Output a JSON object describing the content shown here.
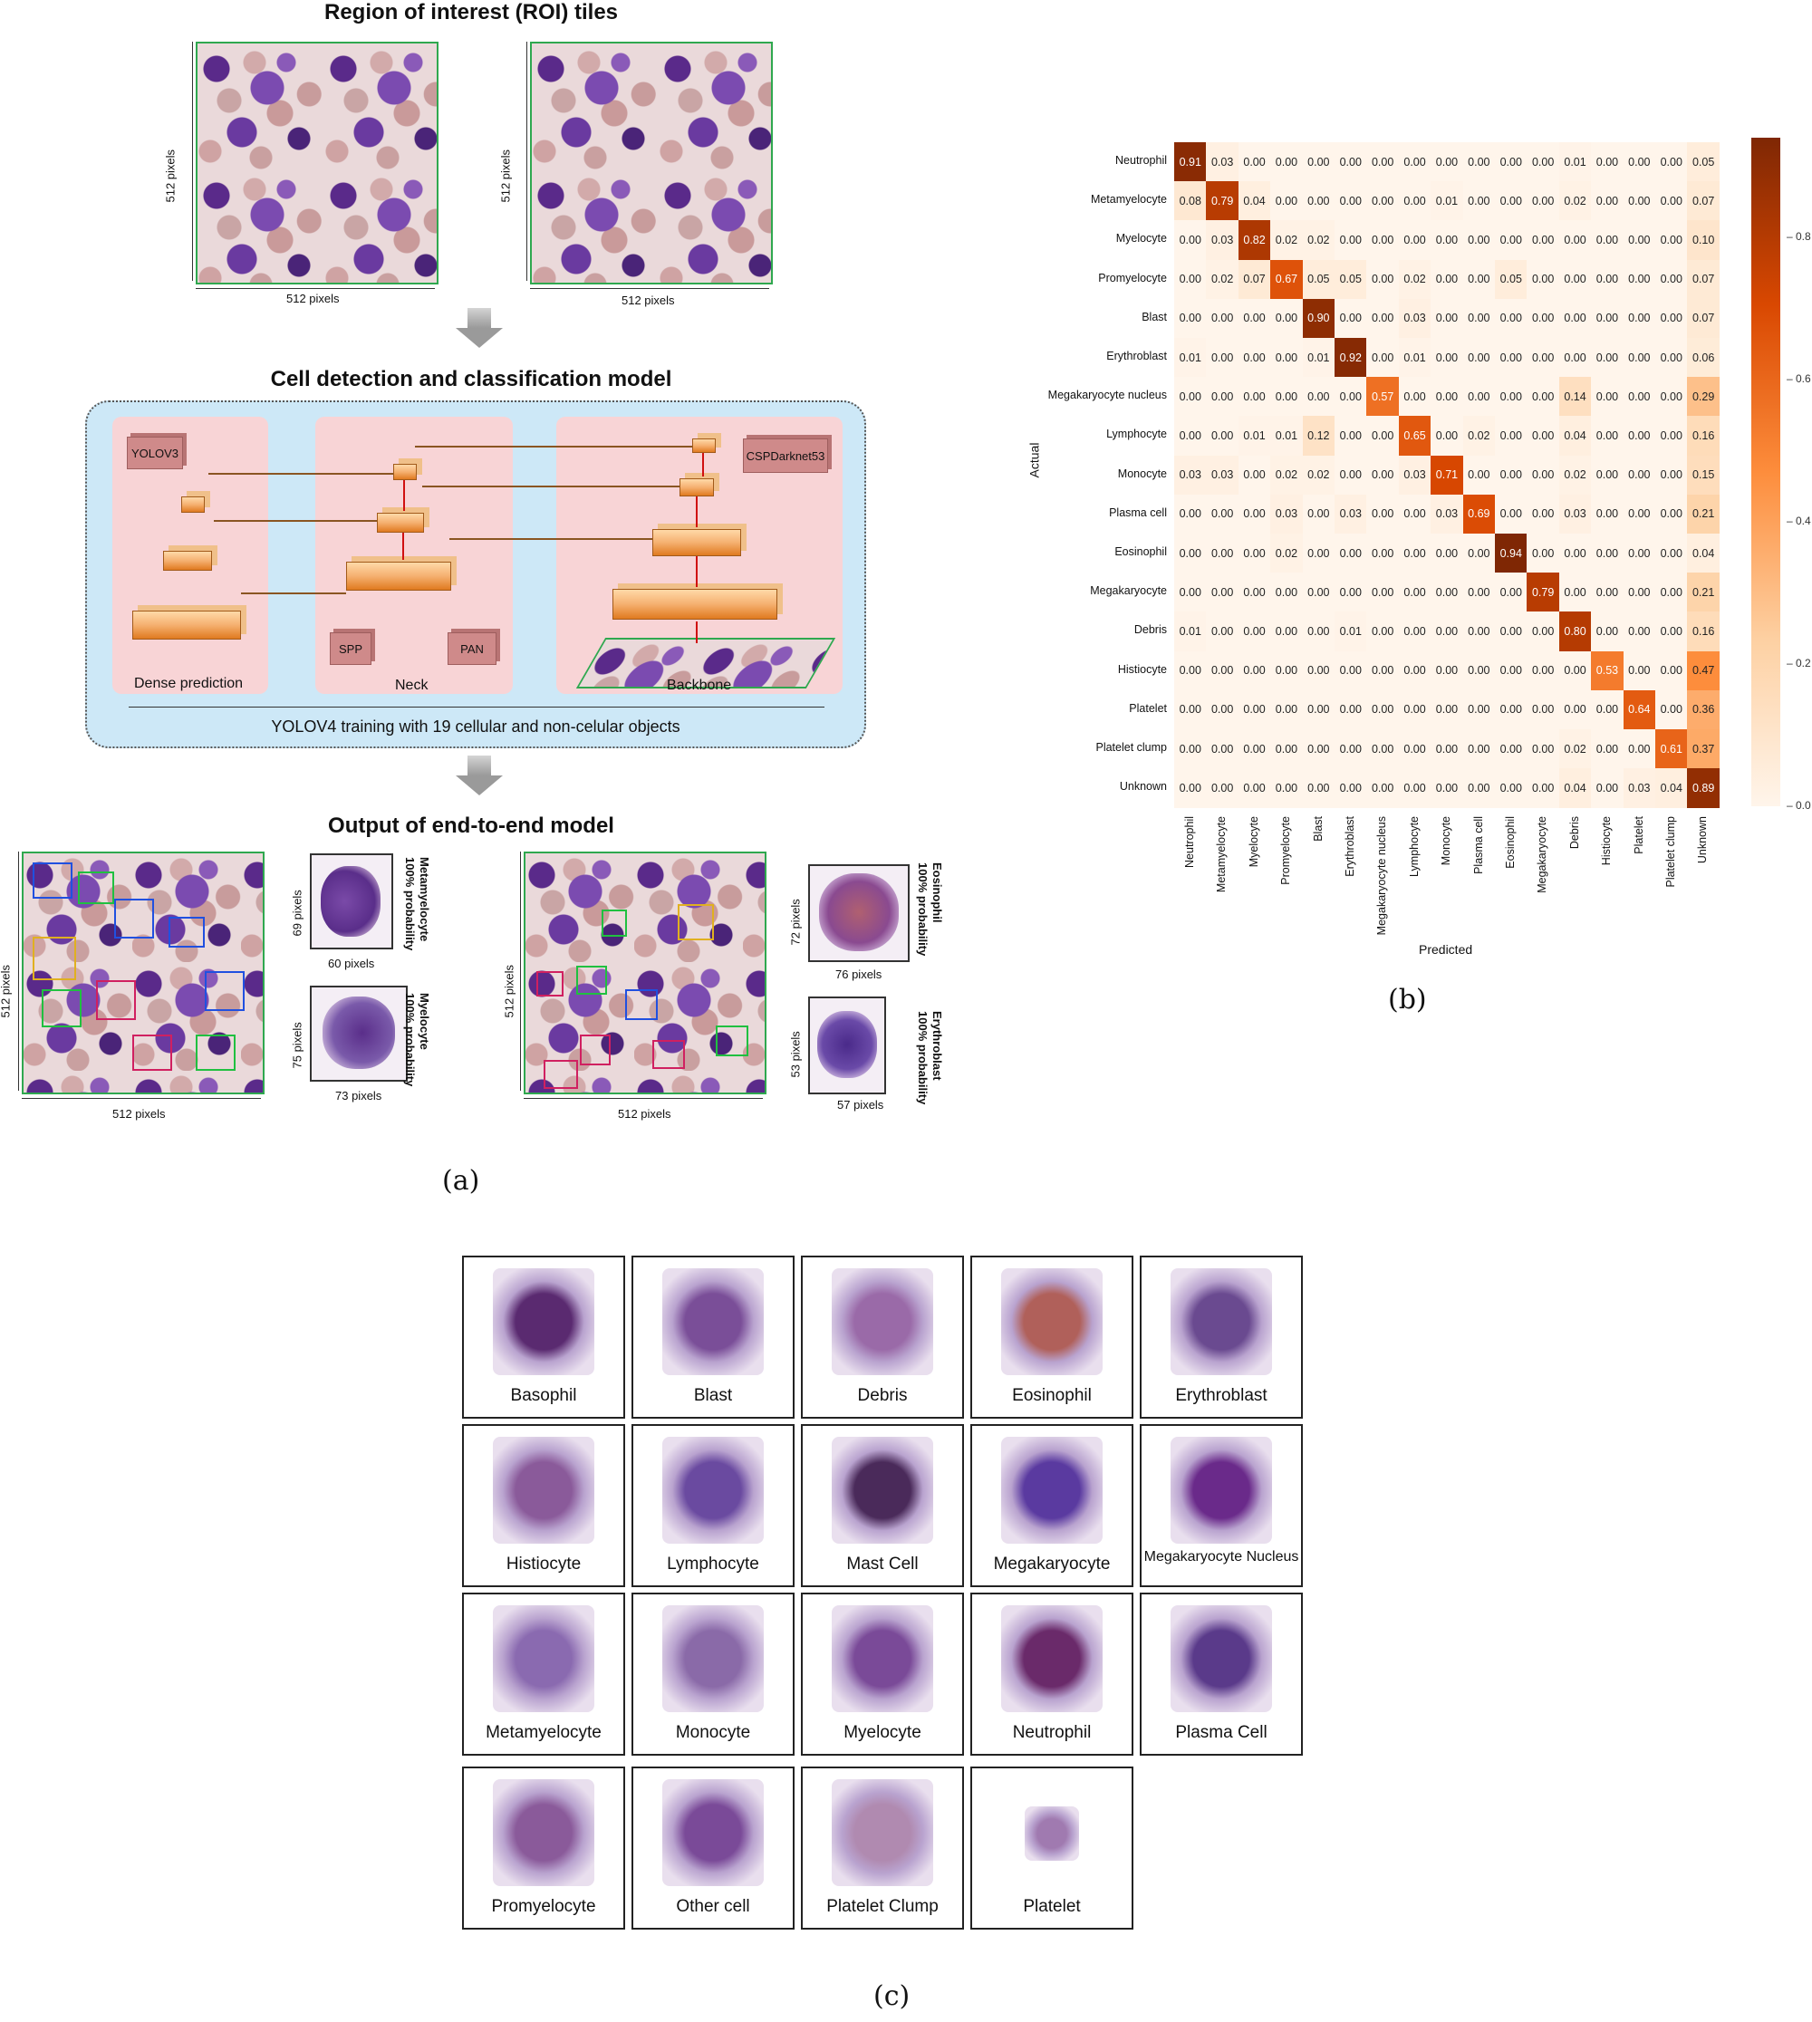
{
  "panel_a": {
    "roi_title": "Region of interest (ROI) tiles",
    "model_title": "Cell detection and classification model",
    "output_title": "Output of end-to-end model",
    "px512": "512 pixels",
    "yolov3": "YOLOV3",
    "cspdarknet": "CSPDarknet53",
    "spp": "SPP",
    "pan": "PAN",
    "dense_prediction": "Dense prediction",
    "neck": "Neck",
    "backbone": "Backbone",
    "training_text": "YOLOV4 training with 19 cellular and non-celular objects",
    "zooms": [
      {
        "h": "69 pixels",
        "w": "60 pixels",
        "label": "Metamyelocyte",
        "prob": "100% probability"
      },
      {
        "h": "75 pixels",
        "w": "73 pixels",
        "label": "Myelocyte",
        "prob": "100% probability"
      },
      {
        "h": "72 pixels",
        "w": "76 pixels",
        "label": "Eosinophil",
        "prob": "100% probability"
      },
      {
        "h": "53 pixels",
        "w": "57 pixels",
        "label": "Erythroblast",
        "prob": "100% probability"
      }
    ],
    "caption": "(a)"
  },
  "panel_b": {
    "caption": "(b)",
    "xlabel": "Predicted",
    "ylabel": "Actual"
  },
  "chart_data": {
    "type": "heatmap",
    "xlabel": "Predicted",
    "ylabel": "Actual",
    "categories": [
      "Neutrophil",
      "Metamyelocyte",
      "Myelocyte",
      "Promyelocyte",
      "Blast",
      "Erythroblast",
      "Megakaryocyte nucleus",
      "Lymphocyte",
      "Monocyte",
      "Plasma cell",
      "Eosinophil",
      "Megakaryocyte",
      "Debris",
      "Histiocyte",
      "Platelet",
      "Platelet clump",
      "Unknown"
    ],
    "values": [
      [
        0.91,
        0.03,
        0.0,
        0.0,
        0.0,
        0.0,
        0.0,
        0.0,
        0.0,
        0.0,
        0.0,
        0.0,
        0.01,
        0.0,
        0.0,
        0.0,
        0.05
      ],
      [
        0.08,
        0.79,
        0.04,
        0.0,
        0.0,
        0.0,
        0.0,
        0.0,
        0.01,
        0.0,
        0.0,
        0.0,
        0.02,
        0.0,
        0.0,
        0.0,
        0.07
      ],
      [
        0.0,
        0.03,
        0.82,
        0.02,
        0.02,
        0.0,
        0.0,
        0.0,
        0.0,
        0.0,
        0.0,
        0.0,
        0.0,
        0.0,
        0.0,
        0.0,
        0.1
      ],
      [
        0.0,
        0.02,
        0.07,
        0.67,
        0.05,
        0.05,
        0.0,
        0.02,
        0.0,
        0.0,
        0.05,
        0.0,
        0.0,
        0.0,
        0.0,
        0.0,
        0.07
      ],
      [
        0.0,
        0.0,
        0.0,
        0.0,
        0.9,
        0.0,
        0.0,
        0.03,
        0.0,
        0.0,
        0.0,
        0.0,
        0.0,
        0.0,
        0.0,
        0.0,
        0.07
      ],
      [
        0.01,
        0.0,
        0.0,
        0.0,
        0.01,
        0.92,
        0.0,
        0.01,
        0.0,
        0.0,
        0.0,
        0.0,
        0.0,
        0.0,
        0.0,
        0.0,
        0.06
      ],
      [
        0.0,
        0.0,
        0.0,
        0.0,
        0.0,
        0.0,
        0.57,
        0.0,
        0.0,
        0.0,
        0.0,
        0.0,
        0.14,
        0.0,
        0.0,
        0.0,
        0.29
      ],
      [
        0.0,
        0.0,
        0.01,
        0.01,
        0.12,
        0.0,
        0.0,
        0.65,
        0.0,
        0.02,
        0.0,
        0.0,
        0.04,
        0.0,
        0.0,
        0.0,
        0.16
      ],
      [
        0.03,
        0.03,
        0.0,
        0.02,
        0.02,
        0.0,
        0.0,
        0.03,
        0.71,
        0.0,
        0.0,
        0.0,
        0.02,
        0.0,
        0.0,
        0.0,
        0.15
      ],
      [
        0.0,
        0.0,
        0.0,
        0.03,
        0.0,
        0.03,
        0.0,
        0.0,
        0.03,
        0.69,
        0.0,
        0.0,
        0.03,
        0.0,
        0.0,
        0.0,
        0.21
      ],
      [
        0.0,
        0.0,
        0.0,
        0.02,
        0.0,
        0.0,
        0.0,
        0.0,
        0.0,
        0.0,
        0.94,
        0.0,
        0.0,
        0.0,
        0.0,
        0.0,
        0.04
      ],
      [
        0.0,
        0.0,
        0.0,
        0.0,
        0.0,
        0.0,
        0.0,
        0.0,
        0.0,
        0.0,
        0.0,
        0.79,
        0.0,
        0.0,
        0.0,
        0.0,
        0.21
      ],
      [
        0.01,
        0.0,
        0.0,
        0.0,
        0.0,
        0.01,
        0.0,
        0.0,
        0.0,
        0.0,
        0.0,
        0.0,
        0.8,
        0.0,
        0.0,
        0.0,
        0.16
      ],
      [
        0.0,
        0.0,
        0.0,
        0.0,
        0.0,
        0.0,
        0.0,
        0.0,
        0.0,
        0.0,
        0.0,
        0.0,
        0.0,
        0.53,
        0.0,
        0.0,
        0.47
      ],
      [
        0.0,
        0.0,
        0.0,
        0.0,
        0.0,
        0.0,
        0.0,
        0.0,
        0.0,
        0.0,
        0.0,
        0.0,
        0.0,
        0.0,
        0.64,
        0.0,
        0.36
      ],
      [
        0.0,
        0.0,
        0.0,
        0.0,
        0.0,
        0.0,
        0.0,
        0.0,
        0.0,
        0.0,
        0.0,
        0.0,
        0.02,
        0.0,
        0.0,
        0.61,
        0.37
      ],
      [
        0.0,
        0.0,
        0.0,
        0.0,
        0.0,
        0.0,
        0.0,
        0.0,
        0.0,
        0.0,
        0.0,
        0.0,
        0.04,
        0.0,
        0.03,
        0.04,
        0.89
      ]
    ],
    "colorbar_ticks": [
      "0.8",
      "0.6",
      "0.4",
      "0.2",
      "0.0"
    ],
    "colormap": [
      "#fff5eb",
      "#7f2704"
    ]
  },
  "panel_c": {
    "caption": "(c)",
    "cells": [
      {
        "label": "Basophil",
        "color": "#5a2a70"
      },
      {
        "label": "Blast",
        "color": "#7a4e98"
      },
      {
        "label": "Debris",
        "color": "#9a6aa8"
      },
      {
        "label": "Eosinophil",
        "color": "#b0605a"
      },
      {
        "label": "Erythroblast",
        "color": "#6a4a90"
      },
      {
        "label": "Histiocyte",
        "color": "#8a5a9a"
      },
      {
        "label": "Lymphocyte",
        "color": "#6a4aa0"
      },
      {
        "label": "Mast Cell",
        "color": "#4a2a5a"
      },
      {
        "label": "Megakaryocyte",
        "color": "#5a3aa0"
      },
      {
        "label": "Megakaryocyte Nucleus",
        "color": "#6a2a8a"
      },
      {
        "label": "Metamyelocyte",
        "color": "#8a6ab0"
      },
      {
        "label": "Monocyte",
        "color": "#8a6aa8"
      },
      {
        "label": "Myelocyte",
        "color": "#7a4a98"
      },
      {
        "label": "Neutrophil",
        "color": "#6a2a6a"
      },
      {
        "label": "Plasma Cell",
        "color": "#5a3a8a"
      },
      {
        "label": "Promyelocyte",
        "color": "#8a5a9a"
      },
      {
        "label": "Other cell",
        "color": "#7a4a98"
      },
      {
        "label": "Platelet Clump",
        "color": "#b08ab0"
      },
      {
        "label": "Platelet",
        "color": "#a07ab0"
      }
    ]
  }
}
